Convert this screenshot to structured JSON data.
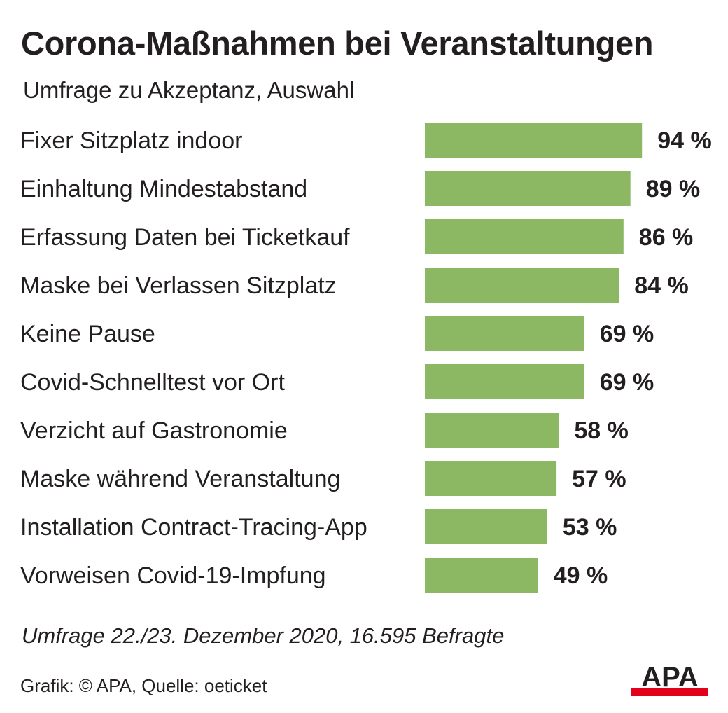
{
  "title": "Corona-Maßnahmen bei Veranstaltungen",
  "subtitle": "Umfrage zu Akzeptanz, Auswahl",
  "note": "Umfrage 22./23. Dezember 2020, 16.595 Befragte",
  "credit": "Grafik: © APA, Quelle: oeticket",
  "logo_text": "APA",
  "colors": {
    "bar": "#8cb864",
    "logo_black": "#231f20",
    "logo_red": "#e3001b"
  },
  "chart_data": {
    "type": "bar",
    "orientation": "horizontal",
    "categories": [
      "Fixer Sitzplatz indoor",
      "Einhaltung Mindestabstand",
      "Erfassung Daten bei Ticketkauf",
      "Maske bei Verlassen Sitzplatz",
      "Keine Pause",
      "Covid-Schnelltest vor Ort",
      "Verzicht auf Gastronomie",
      "Maske während Veranstaltung",
      "Installation Contract-Tracing-App",
      "Vorweisen Covid-19-Impfung"
    ],
    "values": [
      94,
      89,
      86,
      84,
      69,
      69,
      58,
      57,
      53,
      49
    ],
    "value_labels": [
      "94 %",
      "89 %",
      "86 %",
      "84 %",
      "69 %",
      "69 %",
      "58 %",
      "57 %",
      "53 %",
      "49 %"
    ],
    "unit": "%",
    "grid": false,
    "legend": "none"
  }
}
